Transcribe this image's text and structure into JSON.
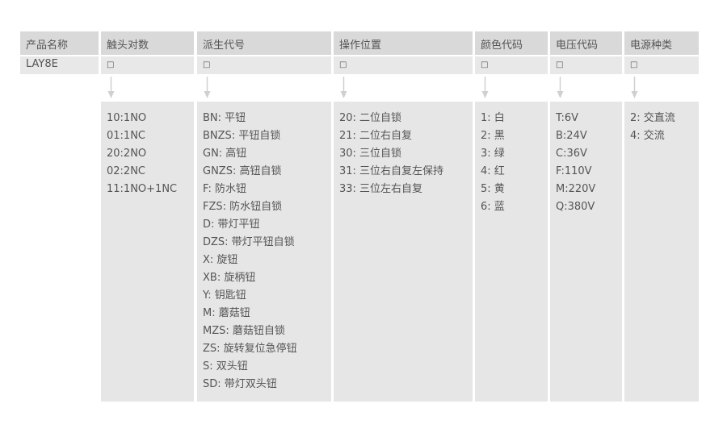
{
  "columns": [
    {
      "header": "产品名称",
      "code": "LAY8E",
      "items": []
    },
    {
      "header": "触头对数",
      "code": "□",
      "items": [
        "10:1NO",
        "01:1NC",
        "20:2NO",
        "02:2NC",
        "11:1NO+1NC"
      ]
    },
    {
      "header": "派生代号",
      "code": "□",
      "items": [
        "BN: 平钮",
        "BNZS: 平钮自锁",
        "GN: 高钮",
        "GNZS: 高钮自锁",
        "F: 防水钮",
        "FZS: 防水钮自锁",
        "D: 带灯平钮",
        "DZS: 带灯平钮自锁",
        "X: 旋钮",
        "XB: 旋柄钮",
        "Y: 钥匙钮",
        "M: 蘑菇钮",
        "MZS: 蘑菇钮自锁",
        "ZS: 旋转复位急停钮",
        "S: 双头钮",
        "SD: 带灯双头钮"
      ]
    },
    {
      "header": "操作位置",
      "code": "□",
      "items": [
        "20: 二位自锁",
        "21: 二位右自复",
        "30: 三位自锁",
        "31: 三位右自复左保持",
        "33: 三位左右自复"
      ]
    },
    {
      "header": "颜色代码",
      "code": "□",
      "items": [
        "1: 白",
        "2: 黑",
        "3: 绿",
        "4: 红",
        "5: 黄",
        "6: 蓝"
      ]
    },
    {
      "header": "电压代码",
      "code": "□",
      "items": [
        "T:6V",
        "B:24V",
        "C:36V",
        "F:110V",
        "M:220V",
        "Q:380V"
      ]
    },
    {
      "header": "电源种类",
      "code": "□",
      "items": [
        "2: 交直流",
        "4: 交流"
      ]
    }
  ]
}
